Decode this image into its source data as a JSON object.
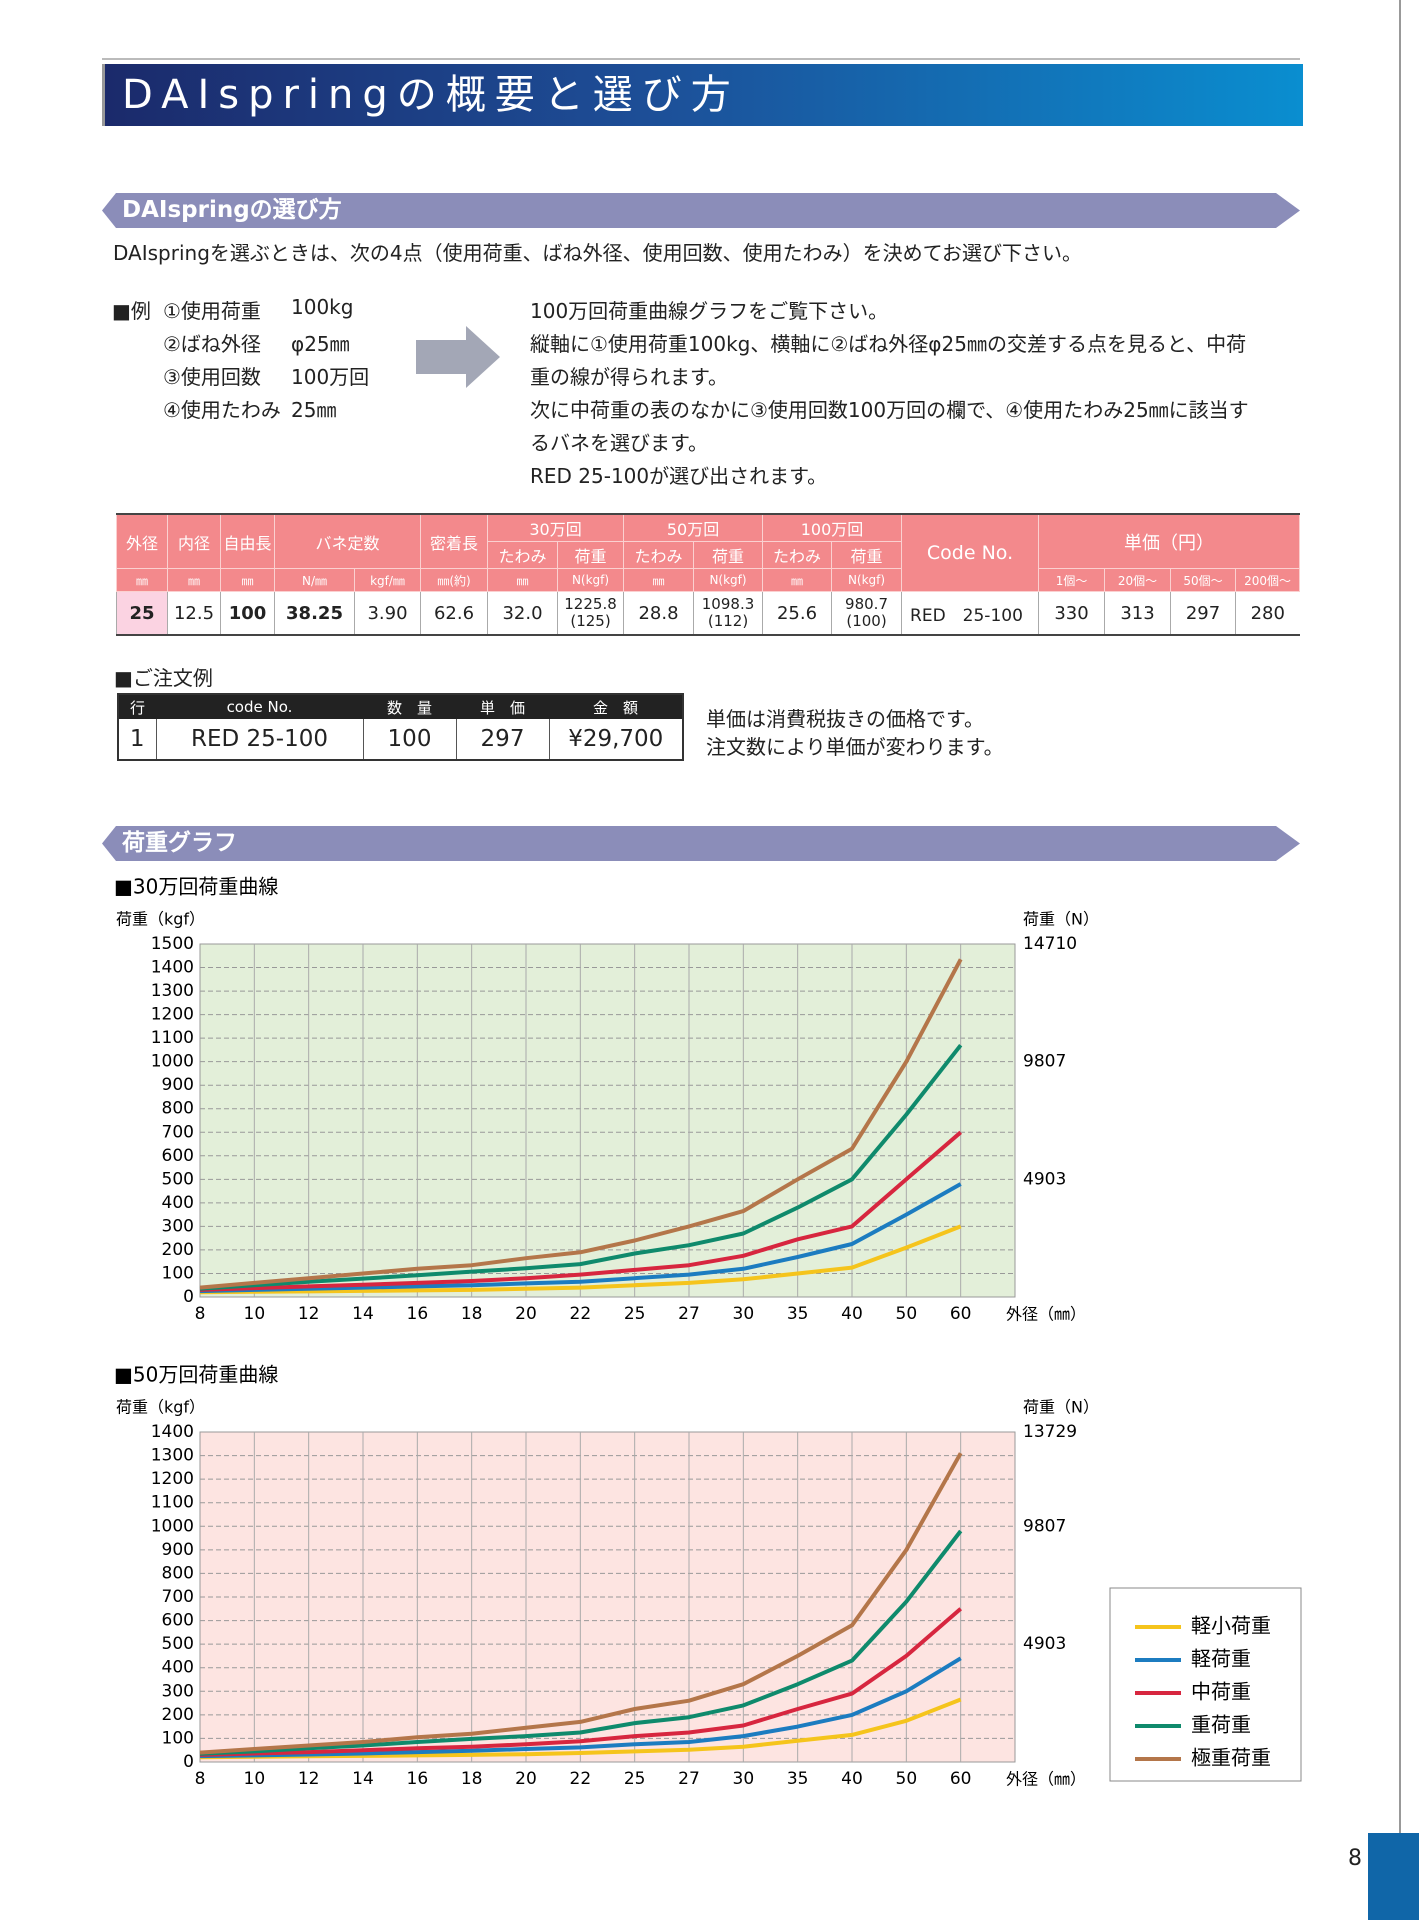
{
  "header": {
    "title": "DAIspringの概要と選び方",
    "page_number": "8"
  },
  "selection": {
    "heading": "DAIspringの選び方",
    "intro": "DAIspringを選ぶときは、次の4点（使用荷重、ばね外径、使用回数、使用たわみ）を決めてお選び下さい。",
    "example_label": "■例",
    "example": [
      [
        "①使用荷重",
        "100kg"
      ],
      [
        "②ばね外径",
        "φ25㎜"
      ],
      [
        "③使用回数",
        "100万回"
      ],
      [
        "④使用たわみ",
        "25㎜"
      ]
    ],
    "explanation": [
      "100万回荷重曲線グラフをご覧下さい。",
      "縦軸に①使用荷重100kg、横軸に②ばね外径φ25㎜の交差する点を見ると、中荷",
      "重の線が得られます。",
      "次に中荷重の表のなかに③使用回数100万回の欄で、④使用たわみ25㎜に該当す",
      "るバネを選びます。",
      "RED 25-100が選び出されます。"
    ]
  },
  "spec_table": {
    "head_top": [
      "外径",
      "内径",
      "自由長",
      "バネ定数",
      "密着長",
      "30万回",
      "50万回",
      "100万回",
      "Code No.",
      "単価（円）"
    ],
    "head_mid": [
      "たわみ",
      "荷重",
      "たわみ",
      "荷重",
      "たわみ",
      "荷重"
    ],
    "head_units": [
      "㎜",
      "㎜",
      "㎜",
      "N/㎜",
      "kgf/㎜",
      "㎜(約)",
      "㎜",
      "N(kgf)",
      "㎜",
      "N(kgf)",
      "㎜",
      "N(kgf)",
      "1個～",
      "20個～",
      "50個～",
      "200個～"
    ],
    "row": [
      "25",
      "12.5",
      "100",
      "38.25",
      "3.90",
      "62.6",
      "32.0",
      [
        "1225.8",
        "(125)"
      ],
      "28.8",
      [
        "1098.3",
        "(112)"
      ],
      "25.6",
      [
        "980.7",
        "(100)"
      ],
      "RED　25-100",
      "330",
      "313",
      "297",
      "280"
    ]
  },
  "order": {
    "heading": "■ご注文例",
    "columns": [
      "行",
      "code No.",
      "数　量",
      "単　価",
      "金　額"
    ],
    "row": [
      "1",
      "RED 25-100",
      "100",
      "297",
      "¥29,700"
    ],
    "notes": [
      "単価は消費税抜きの価格です。",
      "注文数により単価が変わります。"
    ]
  },
  "graph_heading": "荷重グラフ",
  "chart_data": [
    {
      "type": "line",
      "title": "■30万回荷重曲線",
      "y_label": "荷重（kgf）",
      "y2_label": "荷重（N）",
      "x_label": "外径（㎜）",
      "categories": [
        "8",
        "10",
        "12",
        "14",
        "16",
        "18",
        "20",
        "22",
        "25",
        "27",
        "30",
        "35",
        "40",
        "50",
        "60"
      ],
      "ylim": [
        0,
        1500
      ],
      "yticks": [
        0,
        100,
        200,
        300,
        400,
        500,
        600,
        700,
        800,
        900,
        1000,
        1100,
        1200,
        1300,
        1400,
        1500
      ],
      "y2lim": [
        0,
        14710
      ],
      "y2ticks": [
        4903,
        9807,
        14710
      ],
      "grid": true,
      "background": "#e3efd9",
      "series": [
        {
          "color": "#f5c41c",
          "values": [
            20,
            22,
            24,
            26,
            28,
            30,
            35,
            40,
            50,
            60,
            75,
            100,
            125,
            210,
            300
          ]
        },
        {
          "color": "#1c7cc0",
          "values": [
            25,
            30,
            35,
            40,
            45,
            50,
            58,
            65,
            80,
            95,
            120,
            170,
            225,
            350,
            480
          ]
        },
        {
          "color": "#d7263f",
          "values": [
            30,
            38,
            45,
            52,
            60,
            68,
            80,
            95,
            115,
            135,
            175,
            245,
            300,
            500,
            700
          ]
        },
        {
          "color": "#0f8a6c",
          "values": [
            35,
            50,
            65,
            78,
            92,
            108,
            122,
            140,
            185,
            220,
            270,
            380,
            500,
            775,
            1070
          ]
        },
        {
          "color": "#b4764a",
          "values": [
            40,
            60,
            80,
            100,
            120,
            135,
            165,
            190,
            240,
            300,
            365,
            500,
            630,
            1000,
            1435
          ]
        }
      ]
    },
    {
      "type": "line",
      "title": "■50万回荷重曲線",
      "y_label": "荷重（kgf）",
      "y2_label": "荷重（N）",
      "x_label": "外径（㎜）",
      "categories": [
        "8",
        "10",
        "12",
        "14",
        "16",
        "18",
        "20",
        "22",
        "25",
        "27",
        "30",
        "35",
        "40",
        "50",
        "60"
      ],
      "ylim": [
        0,
        1400
      ],
      "yticks": [
        0,
        100,
        200,
        300,
        400,
        500,
        600,
        700,
        800,
        900,
        1000,
        1100,
        1200,
        1300,
        1400
      ],
      "y2lim": [
        0,
        13729
      ],
      "y2ticks": [
        4903,
        9807,
        13729
      ],
      "grid": true,
      "background": "#fde4e1",
      "legend": "right",
      "series": [
        {
          "name": "軽小荷重",
          "color": "#f5c41c",
          "values": [
            20,
            22,
            24,
            26,
            28,
            30,
            33,
            38,
            45,
            52,
            65,
            90,
            115,
            175,
            265
          ]
        },
        {
          "name": "軽荷重",
          "color": "#1c7cc0",
          "values": [
            25,
            28,
            32,
            36,
            42,
            48,
            55,
            62,
            75,
            85,
            110,
            150,
            200,
            300,
            440
          ]
        },
        {
          "name": "中荷重",
          "color": "#d7263f",
          "values": [
            30,
            36,
            42,
            50,
            58,
            65,
            75,
            88,
            110,
            125,
            155,
            225,
            290,
            450,
            650
          ]
        },
        {
          "name": "重荷重",
          "color": "#0f8a6c",
          "values": [
            35,
            45,
            58,
            70,
            85,
            98,
            110,
            125,
            165,
            190,
            240,
            330,
            430,
            680,
            980
          ]
        },
        {
          "name": "極重荷重",
          "color": "#b4764a",
          "values": [
            40,
            55,
            70,
            85,
            105,
            120,
            145,
            170,
            225,
            260,
            330,
            450,
            580,
            900,
            1310
          ]
        }
      ]
    }
  ]
}
